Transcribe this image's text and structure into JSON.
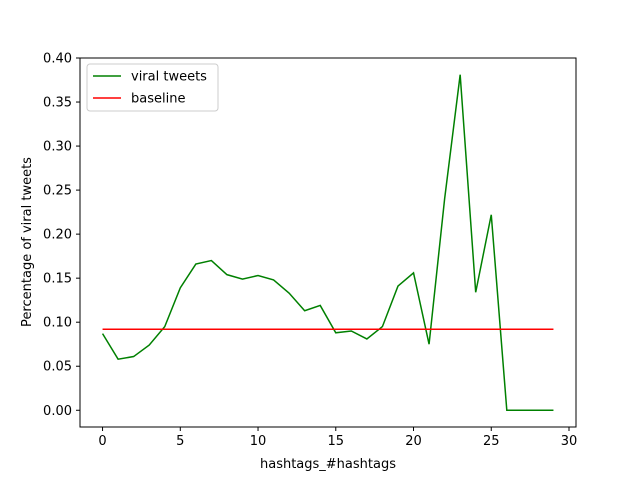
{
  "chart_data": {
    "type": "line",
    "title": "",
    "xlabel": "hashtags_#hashtags",
    "ylabel": "Percentage of viral tweets",
    "xlim": [
      -1.45,
      30.45
    ],
    "ylim": [
      -0.019,
      0.4
    ],
    "xticks": [
      0,
      5,
      10,
      15,
      20,
      25,
      30
    ],
    "yticks": [
      0.0,
      0.05,
      0.1,
      0.15,
      0.2,
      0.25,
      0.3,
      0.35,
      0.4
    ],
    "xtick_labels": [
      "0",
      "5",
      "10",
      "15",
      "20",
      "25",
      "30"
    ],
    "ytick_labels": [
      "0.00",
      "0.05",
      "0.10",
      "0.15",
      "0.20",
      "0.25",
      "0.30",
      "0.35",
      "0.40"
    ],
    "grid": false,
    "legend_position": "top-left",
    "series": [
      {
        "name": "viral tweets",
        "color": "#008000",
        "x": [
          0,
          1,
          2,
          3,
          4,
          5,
          6,
          7,
          8,
          9,
          10,
          11,
          12,
          13,
          14,
          15,
          16,
          17,
          18,
          19,
          20,
          21,
          22,
          23,
          24,
          25,
          26,
          27,
          28,
          29
        ],
        "values": [
          0.087,
          0.058,
          0.061,
          0.074,
          0.095,
          0.139,
          0.166,
          0.17,
          0.154,
          0.149,
          0.153,
          0.148,
          0.133,
          0.113,
          0.119,
          0.088,
          0.09,
          0.081,
          0.095,
          0.141,
          0.156,
          0.075,
          0.24,
          0.381,
          0.134,
          0.222,
          0.0,
          0.0,
          0.0,
          0.0
        ]
      },
      {
        "name": "baseline",
        "color": "#ff0000",
        "x": [
          0,
          29
        ],
        "values": [
          0.092,
          0.092
        ]
      }
    ]
  }
}
